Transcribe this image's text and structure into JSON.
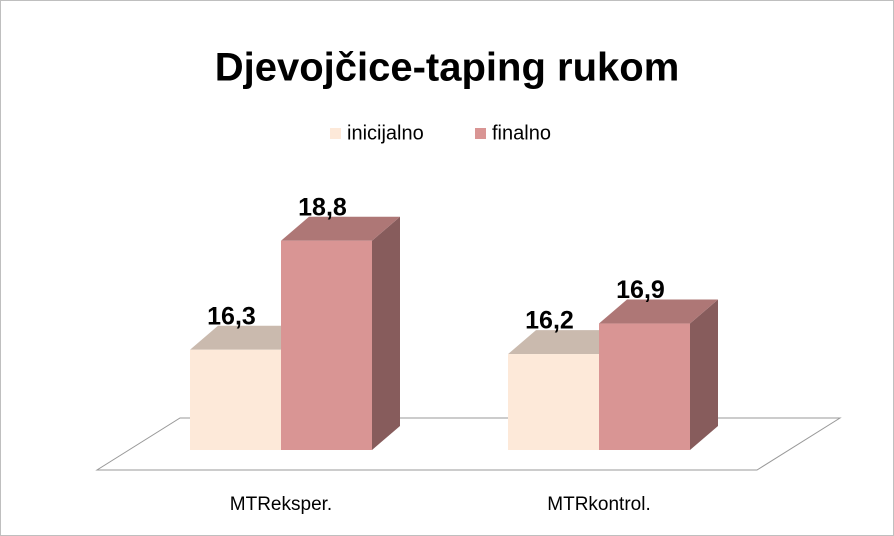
{
  "chart_data": {
    "type": "bar3d",
    "title": "Djevojčice-taping rukom",
    "categories": [
      "MTReksper.",
      "MTRkontrol."
    ],
    "series": [
      {
        "name": "inicijalno",
        "color": "#fde9d9",
        "values": [
          16.3,
          16.2
        ],
        "value_labels": [
          "16,3",
          "16,2"
        ]
      },
      {
        "name": "finalno",
        "color": "#d99594",
        "values": [
          18.8,
          16.9
        ],
        "value_labels": [
          "18,8",
          "16,9"
        ]
      }
    ],
    "ylim": [
      14,
      19
    ],
    "legend": "top"
  }
}
